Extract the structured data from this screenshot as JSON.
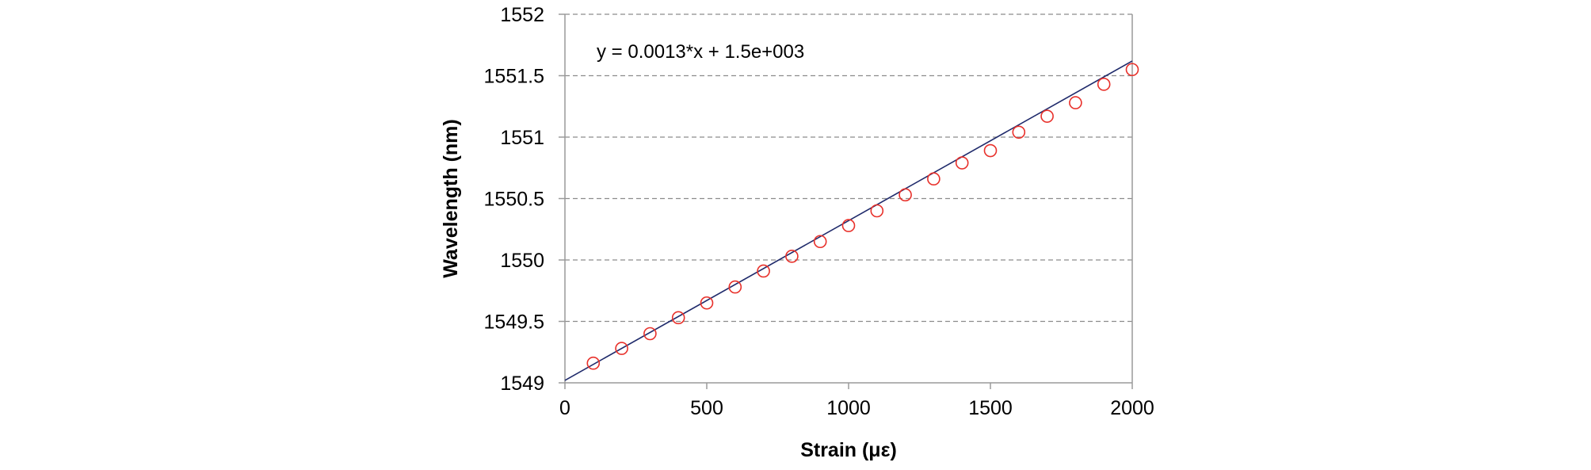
{
  "chart_data": {
    "type": "scatter",
    "title": "",
    "xlabel": "Strain (με)",
    "ylabel": "Wavelength (nm)",
    "xlim": [
      0,
      2000
    ],
    "ylim": [
      1549,
      1552
    ],
    "x_ticks": [
      0,
      500,
      1000,
      1500,
      2000
    ],
    "y_ticks": [
      1549,
      1549.5,
      1550,
      1550.5,
      1551,
      1551.5,
      1552
    ],
    "x_tick_labels": [
      "0",
      "500",
      "1000",
      "1500",
      "2000"
    ],
    "y_tick_labels": [
      "1549",
      "1549.5",
      "1550",
      "1550.5",
      "1551",
      "1551.5",
      "1552"
    ],
    "grid": "horizontal-dashed",
    "legend": "none",
    "annotation": "y = 0.0013*x + 1.5e+003",
    "series": [
      {
        "marker": "open-circle",
        "color": "#e8302a",
        "x": [
          100,
          200,
          300,
          400,
          500,
          600,
          700,
          800,
          900,
          1000,
          1100,
          1200,
          1300,
          1400,
          1500,
          1600,
          1700,
          1800,
          1900,
          2000
        ],
        "y": [
          1549.16,
          1549.28,
          1549.4,
          1549.53,
          1549.65,
          1549.78,
          1549.91,
          1550.03,
          1550.15,
          1550.28,
          1550.4,
          1550.53,
          1550.66,
          1550.79,
          1550.89,
          1551.04,
          1551.17,
          1551.28,
          1551.43,
          1551.55
        ]
      }
    ],
    "fit_line": {
      "color": "#1f2a6b",
      "slope": 0.0013,
      "intercept": 1549.02
    }
  }
}
